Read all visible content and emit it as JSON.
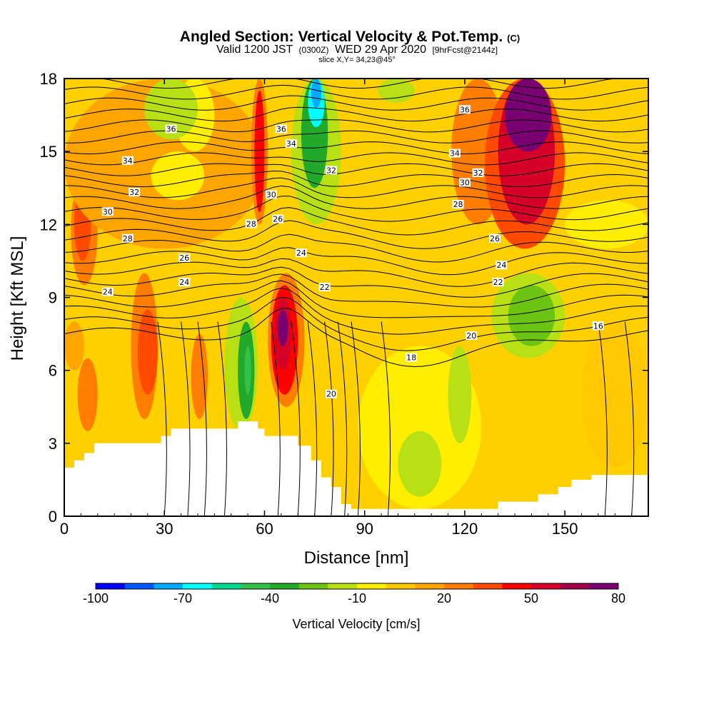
{
  "chart_data": {
    "type": "heatmap",
    "title": "Angled Section: Vertical Velocity & Pot.Temp.",
    "title_mark": "(C)",
    "subtitle_parts": [
      "Valid 1200 JST",
      "(0300Z)",
      "WED 29 Apr 2020",
      "[9hrFcst@2144z]"
    ],
    "subtitle2": "slice X,Y= 34,23@45°",
    "xlabel": "Distance [nm]",
    "ylabel": "Height [Kft MSL]",
    "xlim": [
      0,
      175
    ],
    "ylim": [
      0,
      18
    ],
    "xticks": [
      0,
      30,
      60,
      90,
      120,
      150
    ],
    "yticks": [
      0,
      3,
      6,
      9,
      12,
      15,
      18
    ],
    "colorbar": {
      "title": "Vertical Velocity [cm/s]",
      "min": -100,
      "max": 80,
      "step": 10,
      "tick_labels": [
        "-100",
        "-70",
        "-40",
        "-10",
        "20",
        "50",
        "80"
      ],
      "colors": [
        "#0000ff",
        "#0055ff",
        "#00aaff",
        "#00ffff",
        "#00d890",
        "#35c148",
        "#22a92a",
        "#6cc312",
        "#b9e014",
        "#ffee00",
        "#ffc800",
        "#ffa500",
        "#ff7d00",
        "#ff4a00",
        "#ff0000",
        "#d40028",
        "#a0004a",
        "#780070"
      ]
    },
    "potential_temperature_contour_labels": [
      "16",
      "18",
      "20",
      "22",
      "24",
      "26",
      "28",
      "30",
      "32",
      "34",
      "36"
    ],
    "velocity_cells": [
      {
        "x0": 0,
        "x1": 6,
        "y0": 6,
        "y1": 8,
        "v": 10
      },
      {
        "x0": 4,
        "x1": 10,
        "y0": 3.5,
        "y1": 6.5,
        "v": 20
      },
      {
        "x0": 2,
        "x1": 10,
        "y0": 9.5,
        "y1": 14,
        "v": 20
      },
      {
        "x0": 3,
        "x1": 8,
        "y0": 10.5,
        "y1": 13.5,
        "v": 30
      },
      {
        "x0": 0,
        "x1": 60,
        "y0": 11,
        "y1": 18,
        "v": 10
      },
      {
        "x0": 20,
        "x1": 28,
        "y0": 4,
        "y1": 10,
        "v": 20
      },
      {
        "x0": 22,
        "x1": 28,
        "y0": 5,
        "y1": 8.5,
        "v": 30
      },
      {
        "x0": 33,
        "x1": 45,
        "y0": 15,
        "y1": 18,
        "v": -10
      },
      {
        "x0": 26,
        "x1": 42,
        "y0": 13,
        "y1": 15,
        "v": -10
      },
      {
        "x0": 24,
        "x1": 40,
        "y0": 15.5,
        "y1": 18,
        "v": -20
      },
      {
        "x0": 38,
        "x1": 43,
        "y0": 4,
        "y1": 7.5,
        "v": 20
      },
      {
        "x0": 48,
        "x1": 58,
        "y0": 3.5,
        "y1": 9,
        "v": -20
      },
      {
        "x0": 52,
        "x1": 57,
        "y0": 4,
        "y1": 8,
        "v": -40
      },
      {
        "x0": 54,
        "x1": 56,
        "y0": 5,
        "y1": 7,
        "v": -50
      },
      {
        "x0": 56,
        "x1": 61,
        "y0": 12,
        "y1": 18,
        "v": 20
      },
      {
        "x0": 57,
        "x1": 60,
        "y0": 12.5,
        "y1": 17.5,
        "v": 40
      },
      {
        "x0": 61,
        "x1": 72,
        "y0": 4.5,
        "y1": 10,
        "v": 20
      },
      {
        "x0": 62,
        "x1": 70,
        "y0": 5,
        "y1": 9.5,
        "v": 40
      },
      {
        "x0": 63,
        "x1": 68,
        "y0": 6,
        "y1": 9,
        "v": 50
      },
      {
        "x0": 64,
        "x1": 67,
        "y0": 7,
        "y1": 8.5,
        "v": 70
      },
      {
        "x0": 68,
        "x1": 83,
        "y0": 12,
        "y1": 18,
        "v": -20
      },
      {
        "x0": 71,
        "x1": 79,
        "y0": 13.5,
        "y1": 18,
        "v": -40
      },
      {
        "x0": 73,
        "x1": 78,
        "y0": 16,
        "y1": 18,
        "v": -70
      },
      {
        "x0": 74,
        "x1": 77,
        "y0": 16.8,
        "y1": 18,
        "v": -80
      },
      {
        "x0": 94,
        "x1": 105,
        "y0": 17,
        "y1": 18,
        "v": -20
      },
      {
        "x0": 88,
        "x1": 125,
        "y0": 0.3,
        "y1": 7,
        "v": -10
      },
      {
        "x0": 100,
        "x1": 113,
        "y0": 0.8,
        "y1": 3.5,
        "v": -20
      },
      {
        "x0": 115,
        "x1": 122,
        "y0": 3,
        "y1": 7,
        "v": -20
      },
      {
        "x0": 116,
        "x1": 132,
        "y0": 12,
        "y1": 18,
        "v": 20
      },
      {
        "x0": 126,
        "x1": 150,
        "y0": 11,
        "y1": 18,
        "v": 30
      },
      {
        "x0": 130,
        "x1": 147,
        "y0": 12,
        "y1": 18,
        "v": 50
      },
      {
        "x0": 132,
        "x1": 146,
        "y0": 15,
        "y1": 18,
        "v": 70
      },
      {
        "x0": 135,
        "x1": 142,
        "y0": 16.5,
        "y1": 18,
        "v": 80
      },
      {
        "x0": 128,
        "x1": 150,
        "y0": 6.5,
        "y1": 10,
        "v": -20
      },
      {
        "x0": 133,
        "x1": 147,
        "y0": 7,
        "y1": 9.5,
        "v": -30
      },
      {
        "x0": 155,
        "x1": 175,
        "y0": 2,
        "y1": 8,
        "v": 0
      },
      {
        "x0": 150,
        "x1": 175,
        "y0": 11,
        "y1": 13,
        "v": -10
      }
    ]
  }
}
